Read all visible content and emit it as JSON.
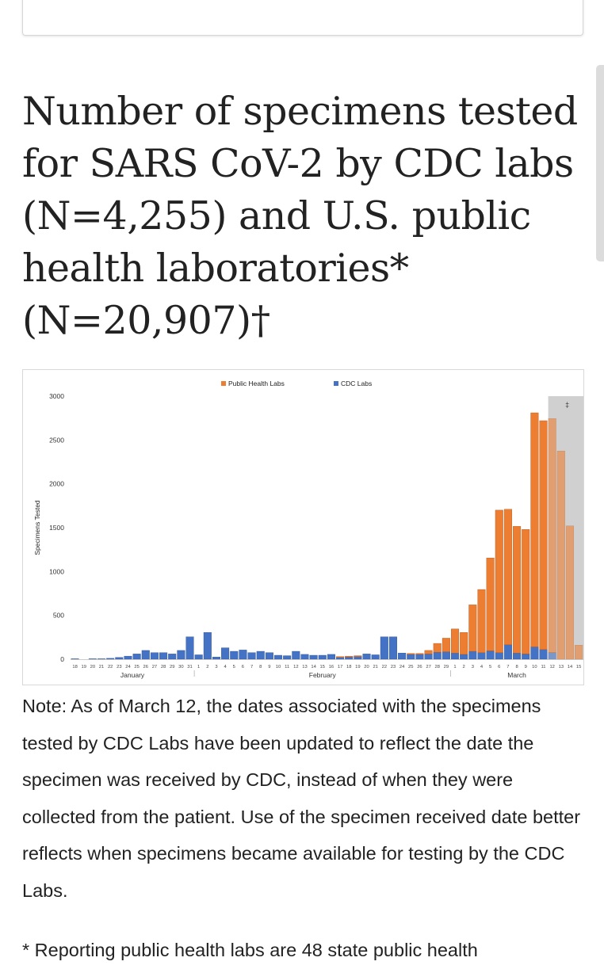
{
  "page": {
    "title": "Number of specimens tested for SARS CoV-2 by CDC labs (N=4,255) and U.S. public health laboratories* (N=20,907)†",
    "note": "Note: As of March 12, the dates associated with the specimens tested by CDC Labs have been updated to reflect the date the specimen was received by CDC, instead of when they were collected from the patient. Use of the specimen received date better reflects when specimens became available for testing by the CDC Labs.",
    "footnote": "* Reporting public health labs are 48 state public health"
  },
  "colors": {
    "public_health": "#ED7D31",
    "cdc": "#4472C4",
    "shade": "#D0D0D0"
  },
  "chart_data": {
    "type": "bar",
    "stacked": true,
    "title": "",
    "ylabel": "Specimens Tested",
    "xlabel": "",
    "ylim": [
      0,
      3000
    ],
    "yticks": [
      0,
      500,
      1000,
      1500,
      2000,
      2500,
      3000
    ],
    "legend": [
      "Public Health Labs",
      "CDC Labs"
    ],
    "legend_position": "top-center",
    "shaded_note": "‡",
    "shaded_from_index": 54,
    "months": [
      {
        "label": "January",
        "start": 0,
        "end": 13
      },
      {
        "label": "February",
        "start": 14,
        "end": 42
      },
      {
        "label": "March",
        "start": 43,
        "end": 57
      }
    ],
    "categories": [
      "18",
      "19",
      "20",
      "21",
      "22",
      "23",
      "24",
      "25",
      "26",
      "27",
      "28",
      "29",
      "30",
      "31",
      "1",
      "2",
      "3",
      "4",
      "5",
      "6",
      "7",
      "8",
      "9",
      "10",
      "11",
      "12",
      "13",
      "14",
      "15",
      "16",
      "17",
      "18",
      "19",
      "20",
      "21",
      "22",
      "23",
      "24",
      "25",
      "26",
      "27",
      "28",
      "29",
      "1",
      "2",
      "3",
      "4",
      "5",
      "6",
      "7",
      "8",
      "9",
      "10",
      "11",
      "12",
      "13",
      "14",
      "15"
    ],
    "series": [
      {
        "name": "CDC Labs",
        "values": [
          5,
          0,
          5,
          5,
          10,
          20,
          35,
          60,
          100,
          75,
          75,
          60,
          100,
          255,
          50,
          305,
          25,
          130,
          90,
          105,
          75,
          90,
          75,
          45,
          40,
          90,
          55,
          45,
          45,
          55,
          20,
          25,
          30,
          60,
          50,
          255,
          255,
          70,
          55,
          55,
          60,
          80,
          85,
          70,
          55,
          90,
          75,
          95,
          75,
          165,
          70,
          60,
          140,
          110,
          75,
          0,
          0,
          0
        ]
      },
      {
        "name": "Public Health Labs",
        "values": [
          0,
          0,
          0,
          0,
          0,
          0,
          0,
          0,
          0,
          0,
          0,
          0,
          0,
          0,
          0,
          0,
          0,
          0,
          0,
          0,
          0,
          0,
          0,
          0,
          0,
          0,
          0,
          0,
          0,
          0,
          10,
          10,
          10,
          0,
          0,
          0,
          0,
          0,
          10,
          10,
          40,
          100,
          155,
          275,
          250,
          530,
          720,
          1060,
          1625,
          1545,
          1445,
          1420,
          2670,
          2610,
          2670,
          2375,
          1520,
          160
        ]
      }
    ]
  }
}
